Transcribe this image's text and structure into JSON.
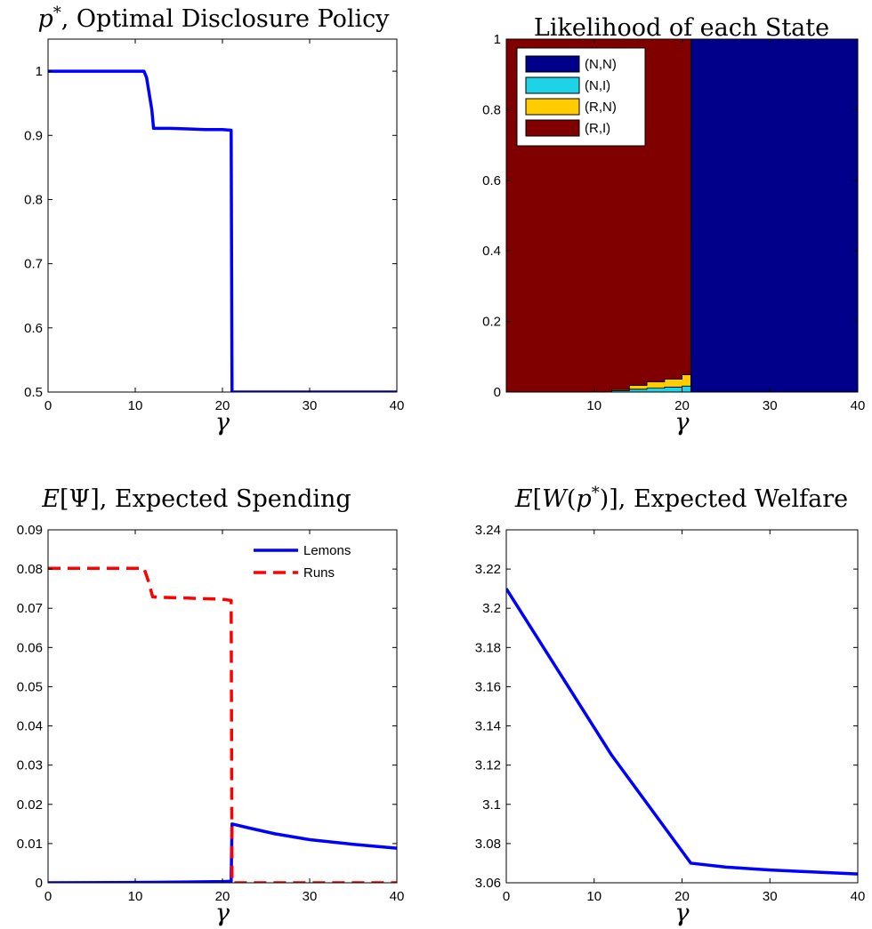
{
  "chart_data": [
    {
      "type": "line",
      "title": "p*, Optimal Disclosure Policy",
      "xlabel": "γ",
      "ylabel": "",
      "xlim": [
        0,
        40
      ],
      "ylim": [
        0.5,
        1.05
      ],
      "xticks": [
        "0",
        "10",
        "20",
        "30",
        "40"
      ],
      "yticks": [
        "0.5",
        "0.6",
        "0.7",
        "0.8",
        "0.9",
        "1"
      ],
      "legend": "none",
      "series": [
        {
          "color": "#0000ff",
          "style": "solid",
          "x": [
            0,
            11,
            11.3,
            11.6,
            11.9,
            12.1,
            14,
            16,
            18,
            20,
            21,
            21.05,
            21.1,
            40
          ],
          "y": [
            1,
            1,
            0.99,
            0.965,
            0.94,
            0.911,
            0.911,
            0.91,
            0.909,
            0.909,
            0.908,
            0.7,
            0.5,
            0.5
          ]
        }
      ]
    },
    {
      "type": "area",
      "title": "Likelihood of each State",
      "xlabel": "γ",
      "ylabel": "",
      "xlim": [
        0,
        40
      ],
      "ylim": [
        0,
        1
      ],
      "xticks": [
        "10",
        "20",
        "30",
        "40"
      ],
      "yticks": [
        "0",
        "0.2",
        "0.4",
        "0.6",
        "0.8",
        "1"
      ],
      "legend": "top-left",
      "stacked": true,
      "x": [
        0,
        12,
        12.01,
        14,
        14.01,
        16,
        16.01,
        18,
        18.01,
        20,
        20.01,
        21,
        21.01,
        40
      ],
      "series": [
        {
          "name": "(N,N)",
          "color": "#00008b",
          "values": [
            0,
            0,
            0,
            0,
            0,
            0,
            0,
            0,
            0,
            0,
            0,
            0,
            1,
            1
          ]
        },
        {
          "name": "(N,I)",
          "color": "#1ed2e8",
          "values": [
            0,
            0,
            0.004,
            0.004,
            0.008,
            0.008,
            0.011,
            0.011,
            0.014,
            0.014,
            0.017,
            0.017,
            0,
            0
          ]
        },
        {
          "name": "(R,N)",
          "color": "#ffcc00",
          "values": [
            0,
            0,
            0.003,
            0.003,
            0.011,
            0.011,
            0.018,
            0.018,
            0.023,
            0.023,
            0.032,
            0.032,
            0,
            0
          ]
        },
        {
          "name": "(R,I)",
          "color": "#800000",
          "values": [
            1,
            1,
            0.993,
            0.993,
            0.981,
            0.981,
            0.971,
            0.971,
            0.963,
            0.963,
            0.951,
            0.951,
            0,
            0
          ]
        }
      ]
    },
    {
      "type": "line",
      "title": "E[Ψ], Expected Spending",
      "xlabel": "γ",
      "ylabel": "",
      "xlim": [
        0,
        40
      ],
      "ylim": [
        0,
        0.09
      ],
      "xticks": [
        "0",
        "10",
        "20",
        "30",
        "40"
      ],
      "yticks": [
        "0",
        "0.01",
        "0.02",
        "0.03",
        "0.04",
        "0.05",
        "0.06",
        "0.07",
        "0.08",
        "0.09"
      ],
      "legend": "top-right",
      "series": [
        {
          "name": "Lemons",
          "color": "#0000ff",
          "style": "solid",
          "x": [
            0,
            12,
            16,
            20,
            21,
            21.05,
            21.1,
            23,
            26,
            30,
            35,
            40
          ],
          "y": [
            0,
            0.0001,
            0.0002,
            0.0003,
            0.0004,
            0.008,
            0.015,
            0.014,
            0.0125,
            0.011,
            0.0098,
            0.0088
          ]
        },
        {
          "name": "Runs",
          "color": "#ff0000",
          "style": "dashed",
          "x": [
            0,
            11,
            11.5,
            12,
            13,
            16,
            20,
            21,
            21.05,
            21.1,
            40
          ],
          "y": [
            0.0802,
            0.0802,
            0.077,
            0.0729,
            0.0728,
            0.0726,
            0.0723,
            0.072,
            0.036,
            0,
            0
          ]
        }
      ]
    },
    {
      "type": "line",
      "title": "E[W(p*)], Expected Welfare",
      "xlabel": "γ",
      "ylabel": "",
      "xlim": [
        0,
        40
      ],
      "ylim": [
        3.06,
        3.24
      ],
      "xticks": [
        "0",
        "10",
        "20",
        "30",
        "40"
      ],
      "yticks": [
        "3.06",
        "3.08",
        "3.1",
        "3.12",
        "3.14",
        "3.16",
        "3.18",
        "3.2",
        "3.22",
        "3.24"
      ],
      "legend": "none",
      "series": [
        {
          "color": "#0000ff",
          "style": "solid",
          "x": [
            0,
            12,
            21,
            25,
            30,
            35,
            40
          ],
          "y": [
            3.21,
            3.125,
            3.07,
            3.068,
            3.0665,
            3.0655,
            3.0645
          ]
        }
      ]
    }
  ]
}
